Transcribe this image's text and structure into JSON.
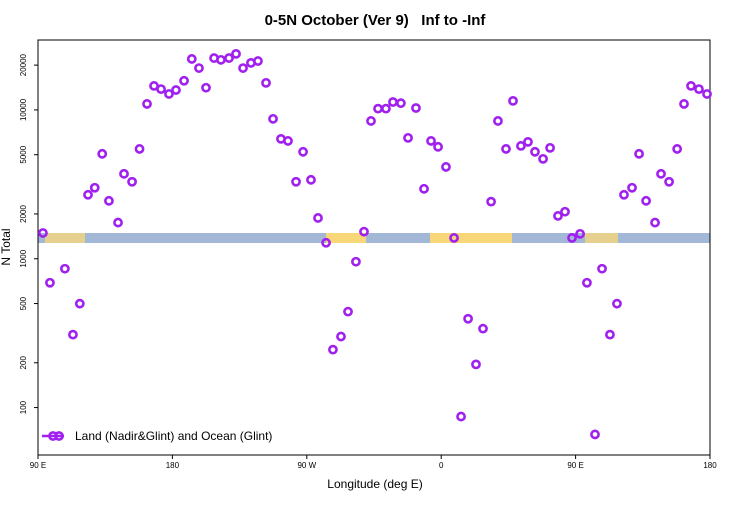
{
  "chart_data": {
    "type": "scatter",
    "title": "0-5N October (Ver 9)   Inf to -Inf",
    "x_label": "Longitude (deg E)",
    "y_label": "N Total",
    "log_y": true,
    "legend": "lower left",
    "xlim": [
      90,
      540
    ],
    "xticks": [
      {
        "value": 90,
        "label": "90 E"
      },
      180,
      {
        "value": 270,
        "label": "90 W"
      },
      {
        "value": 360,
        "label": "0"
      },
      {
        "value": 450,
        "label": "90 E"
      },
      {
        "value": 540,
        "label": "180"
      }
    ],
    "ylim": [
      48,
      29500
    ],
    "yticks": [
      100,
      200,
      500,
      1000,
      2000,
      5000,
      10000,
      20000
    ],
    "x": [
      93.3,
      98,
      108,
      113.4,
      118,
      123.5,
      128,
      133,
      137.5,
      143.6,
      147.6,
      153,
      158,
      163,
      167.7,
      172.4,
      177.7,
      182.4,
      187.8,
      193,
      197.8,
      202.5,
      207.9,
      212.5,
      217.9,
      222.6,
      227.3,
      232.6,
      237.3,
      242.7,
      247.4,
      252.7,
      257.4,
      262.8,
      267.5,
      272.8,
      277.5,
      282.9,
      287.5,
      292.9,
      297.6,
      302.9,
      308.3,
      313,
      317.7,
      323,
      327.7,
      333,
      337.8,
      343.1,
      348.5,
      353.2,
      357.9,
      363.2,
      368.6,
      373.3,
      378,
      383.3,
      388,
      393.4,
      398,
      403.4,
      408.1,
      413.4,
      418.1,
      422.8,
      428.2,
      432.9,
      438.2,
      442.9,
      447.6,
      453,
      457.6,
      463,
      467.7,
      473,
      477.7,
      482.4,
      487.8,
      492.5,
      497.2,
      503.2,
      507.2,
      512.6,
      518,
      522.6,
      527.3,
      532.6,
      538
    ],
    "series": [
      {
        "name": "Land (Nadir&Glint) and Ocean (Glint)",
        "color": "#a020f0",
        "values": [
          1490,
          690,
          857,
          309,
          499,
          2690,
          3000,
          5070,
          2450,
          1750,
          3720,
          3290,
          5470,
          10970,
          14500,
          13800,
          12800,
          13600,
          15700,
          22000,
          19100,
          14100,
          22300,
          21700,
          22300,
          23800,
          19100,
          20700,
          21300,
          15200,
          8710,
          6390,
          6190,
          3290,
          5230,
          3390,
          1880,
          1280,
          245,
          300,
          441,
          955,
          1520,
          8430,
          10200,
          10200,
          11300,
          11100,
          6490,
          10300,
          2950,
          6190,
          5650,
          4140,
          1380,
          87,
          395,
          195,
          339,
          2420,
          8430,
          5470,
          11500,
          5730,
          6100,
          5230,
          4690,
          5560,
          1940,
          2070,
          1380,
          1470,
          690,
          66,
          857,
          309,
          499,
          2690,
          3000,
          5070,
          2450,
          1750,
          3720,
          3290,
          5470,
          10970,
          14500,
          13800,
          12800
        ]
      }
    ]
  }
}
